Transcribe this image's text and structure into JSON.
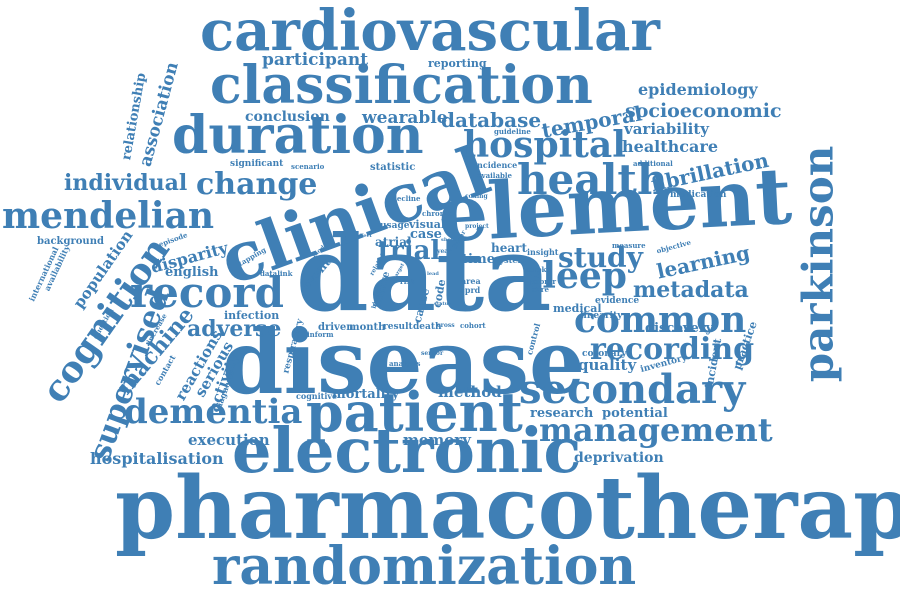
{
  "wordcloud": {
    "color": "#3f7fb5",
    "words": [
      "pharmacotherapy",
      "disease",
      "data",
      "element",
      "clinical",
      "electronic",
      "randomization",
      "cardiovascular",
      "classification",
      "duration",
      "patient",
      "secondary",
      "parkinson",
      "record",
      "health",
      "hospital",
      "common",
      "dementia",
      "mendelian",
      "cognition",
      "supervised",
      "change",
      "management",
      "sleep",
      "study",
      "recording",
      "metadata",
      "trial",
      "individual",
      "adverse",
      "participant",
      "epidemiology",
      "socioeconomic",
      "wearable",
      "database",
      "temporal",
      "variability",
      "healthcare",
      "fibrillation",
      "learning",
      "machine",
      "hospitalisation",
      "deprivation",
      "execution",
      "memory",
      "method",
      "quality",
      "research",
      "potential",
      "association",
      "relationship",
      "population",
      "disparity",
      "english",
      "infection",
      "reactions",
      "serious",
      "activity",
      "mortality",
      "cognitive",
      "discovery",
      "incident",
      "practice",
      "inventory",
      "coronary",
      "evidence",
      "linearity",
      "medical",
      "cohort",
      "conclusion",
      "reporting",
      "significant",
      "statistic",
      "background",
      "international",
      "availability",
      "question",
      "increase",
      "contact",
      "respiratory",
      "driven",
      "month",
      "result",
      "death",
      "event",
      "visual",
      "chronic",
      "case",
      "time",
      "system",
      "heart",
      "insight",
      "atrial",
      "usage",
      "decline",
      "coding",
      "incidence",
      "available",
      "guideline",
      "additional",
      "medication",
      "objective",
      "measure",
      "scenario",
      "episode",
      "tapping",
      "datalink",
      "inform",
      "analysis",
      "diagnosis",
      "sensor",
      "control",
      "cause",
      "code",
      "failure",
      "area",
      "stroke",
      "project",
      "poorer",
      "care",
      "cprd",
      "year",
      "model",
      "effect",
      "short",
      "related",
      "higher",
      "risk",
      "cross",
      "linear",
      "lead",
      "status",
      "target"
    ]
  }
}
